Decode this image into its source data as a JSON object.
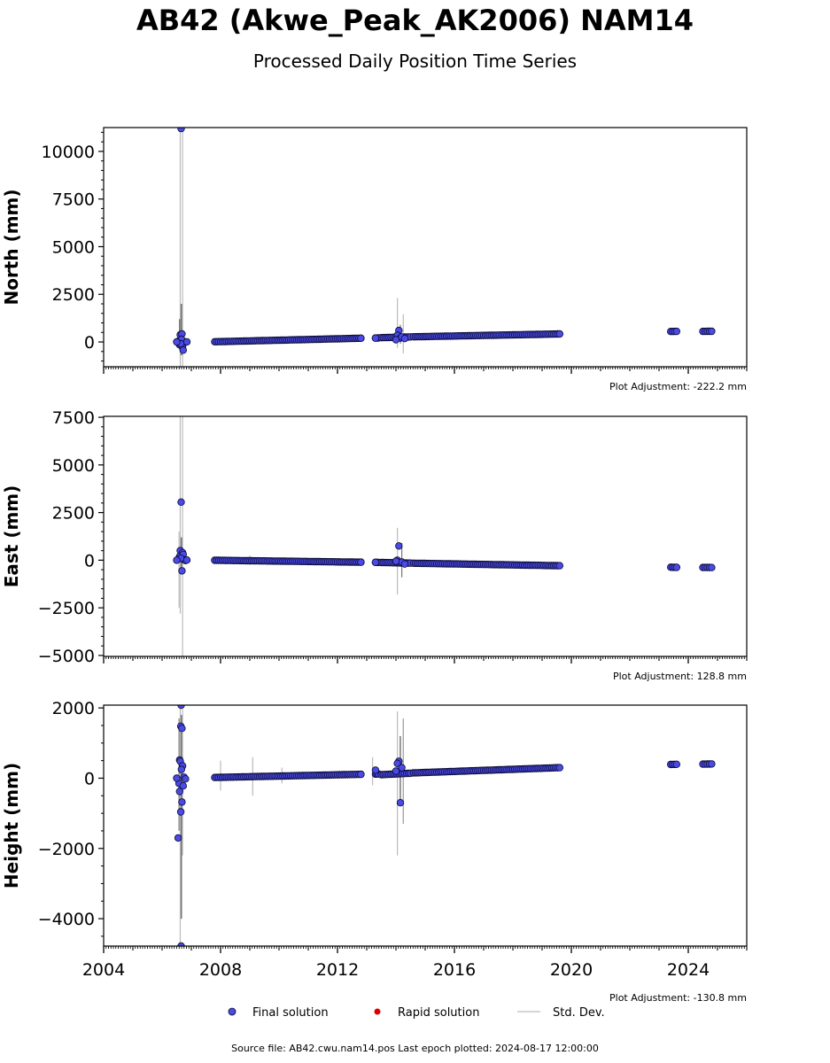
{
  "title": "AB42 (Akwe_Peak_AK2006) NAM14",
  "subtitle": "Processed Daily Position Time Series",
  "footer": "Source file: AB42.cwu.nam14.pos  Last epoch plotted: 2024-08-17 12:00:00",
  "legend": {
    "final": "Final solution",
    "rapid": "Rapid solution",
    "std": "Std. Dev."
  },
  "colors": {
    "final_fill": "#4a4ae6",
    "final_edge": "#0a0a30",
    "rapid": "#dd0000",
    "std": "#c8c8c8"
  },
  "chart_data": [
    {
      "type": "scatter",
      "ylabel": "North (mm)",
      "adjustment": "Plot Adjustment: -222.2 mm",
      "xlim": [
        2004,
        2026
      ],
      "ylim": [
        -1300,
        11250
      ],
      "yticks": [
        0,
        2500,
        5000,
        7500,
        10000
      ],
      "ytick_labels": [
        "0",
        "2500",
        "5000",
        "7500",
        "10000"
      ],
      "ytick_minor": 500,
      "segments": [
        {
          "x0": 2007.8,
          "y0": 10,
          "x1": 2012.8,
          "y1": 195
        },
        {
          "x0": 2013.3,
          "y0": 205,
          "x1": 2013.4,
          "y1": 210
        },
        {
          "x0": 2013.5,
          "y0": 225,
          "x1": 2014.5,
          "y1": 265
        },
        {
          "x0": 2014.6,
          "y0": 270,
          "x1": 2019.6,
          "y1": 420
        },
        {
          "x0": 2023.4,
          "y0": 550,
          "x1": 2023.6,
          "y1": 555
        },
        {
          "x0": 2024.5,
          "y0": 555,
          "x1": 2024.8,
          "y1": 560
        }
      ],
      "points": [
        [
          2006.65,
          11200
        ],
        [
          2006.62,
          380
        ],
        [
          2006.68,
          420
        ],
        [
          2006.6,
          -150
        ],
        [
          2006.7,
          -250
        ],
        [
          2006.72,
          -430
        ],
        [
          2006.55,
          -40
        ],
        [
          2006.58,
          60
        ],
        [
          2006.75,
          20
        ],
        [
          2006.8,
          -10
        ],
        [
          2006.65,
          30
        ],
        [
          2006.66,
          140
        ],
        [
          2006.64,
          -90
        ],
        [
          2006.5,
          0
        ],
        [
          2006.85,
          5
        ],
        [
          2014.1,
          600
        ],
        [
          2014.05,
          350
        ],
        [
          2014.15,
          200
        ],
        [
          2014.0,
          120
        ],
        [
          2014.2,
          260
        ],
        [
          2014.3,
          180
        ],
        [
          2013.3,
          200
        ],
        [
          2012.8,
          195
        ]
      ],
      "errorbars": [
        {
          "x": 2006.62,
          "lo": -1300,
          "hi": 11250,
          "c": "#bbbbbb"
        },
        {
          "x": 2006.7,
          "lo": -1300,
          "hi": 11250,
          "c": "#bbbbbb"
        },
        {
          "x": 2006.66,
          "lo": -700,
          "hi": 2000,
          "c": "#555555"
        },
        {
          "x": 2006.6,
          "lo": -400,
          "hi": 1200,
          "c": "#555555"
        },
        {
          "x": 2014.05,
          "lo": -300,
          "hi": 2300,
          "c": "#bbbbbb"
        },
        {
          "x": 2014.25,
          "lo": -600,
          "hi": 1450,
          "c": "#bbbbbb"
        },
        {
          "x": 2014.15,
          "lo": -100,
          "hi": 900,
          "c": "#777777"
        }
      ]
    },
    {
      "type": "scatter",
      "ylabel": "East (mm)",
      "adjustment": "Plot Adjustment: 128.8 mm",
      "xlim": [
        2004,
        2026
      ],
      "ylim": [
        -5050,
        7550
      ],
      "yticks": [
        -5000,
        -2500,
        0,
        2500,
        5000,
        7500
      ],
      "ytick_labels": [
        "−5000",
        "−2500",
        "0",
        "2500",
        "5000",
        "7500"
      ],
      "ytick_minor": 500,
      "segments": [
        {
          "x0": 2007.8,
          "y0": -5,
          "x1": 2012.8,
          "y1": -105
        },
        {
          "x0": 2013.3,
          "y0": -110,
          "x1": 2013.4,
          "y1": -115
        },
        {
          "x0": 2013.5,
          "y0": -120,
          "x1": 2014.5,
          "y1": -155
        },
        {
          "x0": 2014.6,
          "y0": -160,
          "x1": 2019.6,
          "y1": -290
        },
        {
          "x0": 2023.4,
          "y0": -370,
          "x1": 2023.6,
          "y1": -375
        },
        {
          "x0": 2024.5,
          "y0": -380,
          "x1": 2024.8,
          "y1": -385
        }
      ],
      "points": [
        [
          2006.65,
          3050
        ],
        [
          2006.62,
          500
        ],
        [
          2006.7,
          400
        ],
        [
          2006.6,
          200
        ],
        [
          2006.72,
          300
        ],
        [
          2006.68,
          -560
        ],
        [
          2006.55,
          50
        ],
        [
          2006.75,
          20
        ],
        [
          2006.8,
          -20
        ],
        [
          2006.64,
          100
        ],
        [
          2006.5,
          0
        ],
        [
          2006.85,
          10
        ],
        [
          2014.1,
          750
        ],
        [
          2014.05,
          0
        ],
        [
          2014.2,
          -100
        ],
        [
          2014.0,
          -50
        ],
        [
          2014.3,
          -200
        ],
        [
          2013.3,
          -110
        ],
        [
          2012.8,
          -105
        ]
      ],
      "errorbars": [
        {
          "x": 2006.62,
          "lo": -2800,
          "hi": 7550,
          "c": "#bbbbbb"
        },
        {
          "x": 2006.7,
          "lo": -5050,
          "hi": 7550,
          "c": "#bbbbbb"
        },
        {
          "x": 2006.66,
          "lo": -600,
          "hi": 1200,
          "c": "#555555"
        },
        {
          "x": 2006.58,
          "lo": -2500,
          "hi": 1500,
          "c": "#bbbbbb"
        },
        {
          "x": 2014.05,
          "lo": -1800,
          "hi": 1700,
          "c": "#bbbbbb"
        },
        {
          "x": 2014.2,
          "lo": -900,
          "hi": 900,
          "c": "#777777"
        },
        {
          "x": 2009.0,
          "lo": -250,
          "hi": 250,
          "c": "#bbbbbb"
        }
      ]
    },
    {
      "type": "scatter",
      "ylabel": "Height (mm)",
      "adjustment": "Plot Adjustment: -130.8 mm",
      "xlim": [
        2004,
        2026
      ],
      "ylim": [
        -4780,
        2080
      ],
      "yticks": [
        -4000,
        -2000,
        0,
        2000
      ],
      "ytick_labels": [
        "−4000",
        "−2000",
        "0",
        "2000"
      ],
      "ytick_minor": 500,
      "xticks": [
        2004,
        2008,
        2012,
        2016,
        2020,
        2024
      ],
      "xtick_labels": [
        "2004",
        "2008",
        "2012",
        "2016",
        "2020",
        "2024"
      ],
      "segments": [
        {
          "x0": 2007.8,
          "y0": 20,
          "x1": 2012.8,
          "y1": 110
        },
        {
          "x0": 2013.3,
          "y0": 115,
          "x1": 2013.4,
          "y1": 120
        },
        {
          "x0": 2013.5,
          "y0": 100,
          "x1": 2014.5,
          "y1": 140
        },
        {
          "x0": 2014.6,
          "y0": 150,
          "x1": 2019.6,
          "y1": 300
        },
        {
          "x0": 2023.4,
          "y0": 390,
          "x1": 2023.6,
          "y1": 395
        },
        {
          "x0": 2024.5,
          "y0": 400,
          "x1": 2024.8,
          "y1": 405
        }
      ],
      "points": [
        [
          2006.65,
          2080
        ],
        [
          2006.64,
          1480
        ],
        [
          2006.68,
          1420
        ],
        [
          2006.6,
          520
        ],
        [
          2006.62,
          480
        ],
        [
          2006.7,
          350
        ],
        [
          2006.66,
          250
        ],
        [
          2006.58,
          -150
        ],
        [
          2006.72,
          -220
        ],
        [
          2006.6,
          -380
        ],
        [
          2006.68,
          -680
        ],
        [
          2006.64,
          -960
        ],
        [
          2006.55,
          -1700
        ],
        [
          2006.65,
          -4780
        ],
        [
          2006.5,
          0
        ],
        [
          2006.75,
          30
        ],
        [
          2006.8,
          -20
        ],
        [
          2014.1,
          480
        ],
        [
          2014.05,
          420
        ],
        [
          2014.2,
          300
        ],
        [
          2014.0,
          200
        ],
        [
          2014.15,
          -700
        ],
        [
          2013.3,
          230
        ],
        [
          2012.8,
          110
        ]
      ],
      "errorbars": [
        {
          "x": 2006.62,
          "lo": -4780,
          "hi": 2080,
          "c": "#bbbbbb"
        },
        {
          "x": 2006.7,
          "lo": -2200,
          "hi": 2080,
          "c": "#bbbbbb"
        },
        {
          "x": 2006.66,
          "lo": -4000,
          "hi": 1800,
          "c": "#555555"
        },
        {
          "x": 2006.58,
          "lo": -1500,
          "hi": 1700,
          "c": "#777777"
        },
        {
          "x": 2014.05,
          "lo": -2200,
          "hi": 1900,
          "c": "#bbbbbb"
        },
        {
          "x": 2014.25,
          "lo": -1300,
          "hi": 1700,
          "c": "#999999"
        },
        {
          "x": 2014.15,
          "lo": -800,
          "hi": 1200,
          "c": "#555555"
        },
        {
          "x": 2008.0,
          "lo": -350,
          "hi": 500,
          "c": "#bbbbbb"
        },
        {
          "x": 2009.1,
          "lo": -500,
          "hi": 600,
          "c": "#bbbbbb"
        },
        {
          "x": 2010.1,
          "lo": -150,
          "hi": 300,
          "c": "#bbbbbb"
        },
        {
          "x": 2013.2,
          "lo": -200,
          "hi": 600,
          "c": "#bbbbbb"
        }
      ]
    }
  ]
}
